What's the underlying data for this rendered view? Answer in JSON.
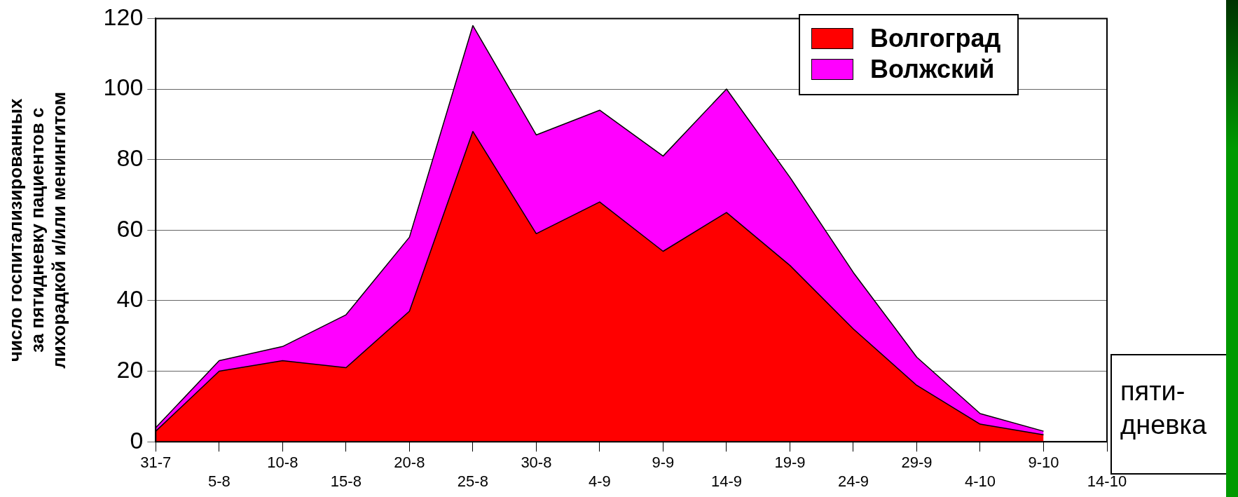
{
  "chart_data": {
    "type": "area",
    "stacked": true,
    "xlabel": "пяти-дневка",
    "ylabel": "число госпитализированных за пятидневку пациентов с лихорадкой и/или менингитом",
    "categories": [
      "31-7",
      "5-8",
      "10-8",
      "15-8",
      "20-8",
      "25-8",
      "30-8",
      "4-9",
      "9-9",
      "14-9",
      "19-9",
      "24-9",
      "29-9",
      "4-10",
      "9-10",
      "14-10"
    ],
    "series": [
      {
        "name": "Волгоград",
        "color": "#ff0000",
        "values": [
          3,
          20,
          23,
          21,
          37,
          88,
          59,
          68,
          54,
          65,
          50,
          32,
          16,
          5,
          2,
          null
        ]
      },
      {
        "name": "Волжский",
        "color": "#ff00ff",
        "values": [
          1,
          3,
          4,
          15,
          21,
          30,
          28,
          26,
          27,
          35,
          25,
          16,
          8,
          3,
          1,
          null
        ]
      }
    ],
    "ylim": [
      0,
      120
    ],
    "yticks": [
      0,
      20,
      40,
      60,
      80,
      100,
      120
    ],
    "grid": "y",
    "legend": "top right"
  }
}
